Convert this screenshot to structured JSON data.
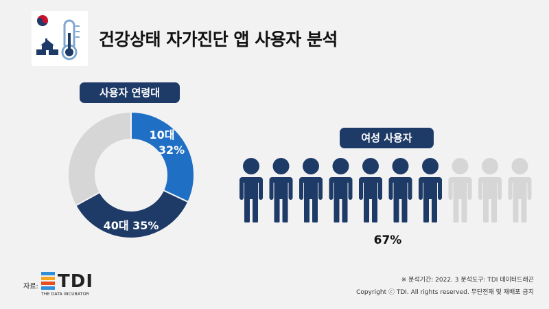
{
  "title": "건강상태 자가진단 앱 사용자 분석",
  "colors": {
    "dark_navy": "#1e3a67",
    "blue": "#1f6fc5",
    "gray": "#d6d6d6",
    "person_filled": "#1e3a67",
    "person_empty": "#d6d6d6"
  },
  "icons": [
    "government-emblem-icon",
    "school-icon",
    "thermometer-icon"
  ],
  "age_section": {
    "label": "사용자 연령대"
  },
  "female_section": {
    "label": "여성 사용자",
    "percent_label": "67%"
  },
  "chart_data": [
    {
      "type": "pie",
      "title": "사용자 연령대",
      "donut": true,
      "slices": [
        {
          "label": "10대",
          "value": 32,
          "value_label": "32%",
          "color": "#1f6fc5"
        },
        {
          "label": "40대",
          "value": 35,
          "value_label": "35%",
          "color": "#1e3a67"
        },
        {
          "label": "",
          "value": 33,
          "value_label": "",
          "color": "#d6d6d6"
        }
      ]
    },
    {
      "type": "pictogram",
      "title": "여성 사용자",
      "total_icons": 10,
      "filled_icons": 7,
      "value": 67,
      "value_label": "67%",
      "filled_color": "#1e3a67",
      "empty_color": "#d6d6d6"
    }
  ],
  "source": {
    "label": "자료:",
    "logo_text": "TDI",
    "logo_subtitle": "THE DATA INCUBATOR"
  },
  "footer": {
    "line1": "※ 분석기간: 2022. 3   분석도구: TDI 데이터드래곤",
    "line2": "Copyright ⓒ TDI. All rights reserved. 무단전재 및 재배포 금지"
  }
}
